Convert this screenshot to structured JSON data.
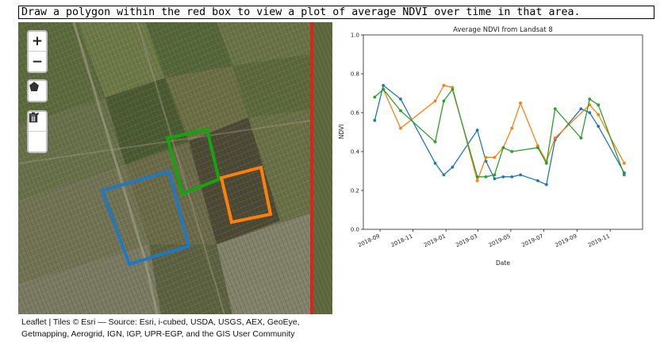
{
  "instruction": "Draw a polygon within the red box to view a plot of average NDVI over time in that area.",
  "map": {
    "zoom_in_label": "+",
    "zoom_out_label": "−",
    "tools": [
      "polygon-tool",
      "edit-layers",
      "delete-layers"
    ],
    "drawn_polygon_colors": [
      "#1f77b4",
      "#ff7f0e",
      "#2ca02c"
    ],
    "boundary_color": "#e32118"
  },
  "attribution": {
    "line1": "Leaflet | Tiles © Esri — Source: Esri, i-cubed, USDA, USGS, AEX, GeoEye,",
    "line2": "Getmapping, Aerogrid, IGN, IGP, UPR-EGP, and the GIS User Community"
  },
  "chart_data": {
    "type": "line",
    "title": "Average NDVI from Landsat 8",
    "xlabel": "Date",
    "ylabel": "NDVI",
    "ylim": [
      0.0,
      1.0
    ],
    "xlim": [
      "2018-08-01",
      "2019-12-31"
    ],
    "yticks": [
      "0.0",
      "0.2",
      "0.4",
      "0.6",
      "0.8",
      "1.0"
    ],
    "xticks": [
      "2018-09",
      "2018-11",
      "2019-01",
      "2019-03",
      "2019-05",
      "2019-07",
      "2019-09",
      "2019-11"
    ],
    "series": [
      {
        "color": "#1f77b4",
        "x": [
          "2018-08-22",
          "2018-09-07",
          "2018-10-09",
          "2018-12-12",
          "2018-12-28",
          "2019-01-13",
          "2019-02-28",
          "2019-03-16",
          "2019-04-01",
          "2019-04-17",
          "2019-05-03",
          "2019-05-19",
          "2019-06-20",
          "2019-07-06",
          "2019-07-22",
          "2019-09-08",
          "2019-09-24",
          "2019-10-10",
          "2019-11-27"
        ],
        "values": [
          0.56,
          0.74,
          0.67,
          0.34,
          0.28,
          0.32,
          0.51,
          0.35,
          0.26,
          0.27,
          0.27,
          0.28,
          0.25,
          0.23,
          0.46,
          0.62,
          0.6,
          0.53,
          0.29
        ]
      },
      {
        "color": "#ff7f0e",
        "x": [
          "2018-09-07",
          "2018-10-09",
          "2018-12-12",
          "2018-12-28",
          "2019-01-13",
          "2019-02-28",
          "2019-03-16",
          "2019-04-01",
          "2019-04-17",
          "2019-05-03",
          "2019-05-19",
          "2019-06-20",
          "2019-07-06",
          "2019-07-22",
          "2019-09-24",
          "2019-10-10",
          "2019-11-27"
        ],
        "values": [
          0.72,
          0.52,
          0.66,
          0.74,
          0.73,
          0.25,
          0.37,
          0.37,
          0.42,
          0.52,
          0.65,
          0.43,
          0.35,
          0.47,
          0.64,
          0.59,
          0.34
        ]
      },
      {
        "color": "#2ca02c",
        "x": [
          "2018-08-22",
          "2018-09-07",
          "2018-10-09",
          "2018-12-12",
          "2018-12-28",
          "2019-01-13",
          "2019-02-28",
          "2019-03-16",
          "2019-04-01",
          "2019-04-17",
          "2019-05-03",
          "2019-06-20",
          "2019-07-06",
          "2019-07-22",
          "2019-09-08",
          "2019-09-24",
          "2019-10-10",
          "2019-11-27"
        ],
        "values": [
          0.68,
          0.72,
          0.61,
          0.45,
          0.66,
          0.72,
          0.27,
          0.27,
          0.28,
          0.42,
          0.4,
          0.42,
          0.34,
          0.62,
          0.47,
          0.67,
          0.64,
          0.28
        ]
      }
    ]
  }
}
